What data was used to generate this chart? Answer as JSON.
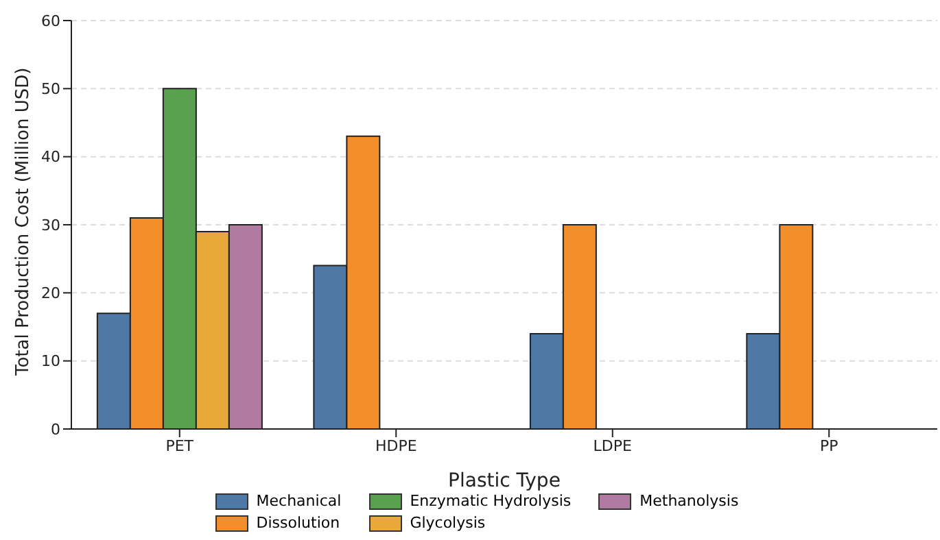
{
  "chart_data": {
    "type": "bar",
    "xlabel": "Plastic Type",
    "ylabel": "Total Production Cost (Million USD)",
    "categories": [
      "PET",
      "HDPE",
      "LDPE",
      "PP"
    ],
    "series": [
      {
        "name": "Mechanical",
        "color": "#4e79a7",
        "values": [
          17,
          24,
          14,
          14
        ]
      },
      {
        "name": "Dissolution",
        "color": "#f28e2b",
        "values": [
          31,
          43,
          30,
          30
        ]
      },
      {
        "name": "Enzymatic Hydrolysis",
        "color": "#59a14f",
        "values": [
          50,
          0,
          0,
          0
        ]
      },
      {
        "name": "Glycolysis",
        "color": "#e9a93a",
        "values": [
          29,
          0,
          0,
          0
        ]
      },
      {
        "name": "Methanolysis",
        "color": "#b07aa1",
        "values": [
          30,
          0,
          0,
          0
        ]
      }
    ],
    "ylim": [
      0,
      60
    ],
    "yticks": [
      0,
      10,
      20,
      30,
      40,
      50,
      60
    ],
    "grid": "y",
    "legend": "bottom"
  }
}
